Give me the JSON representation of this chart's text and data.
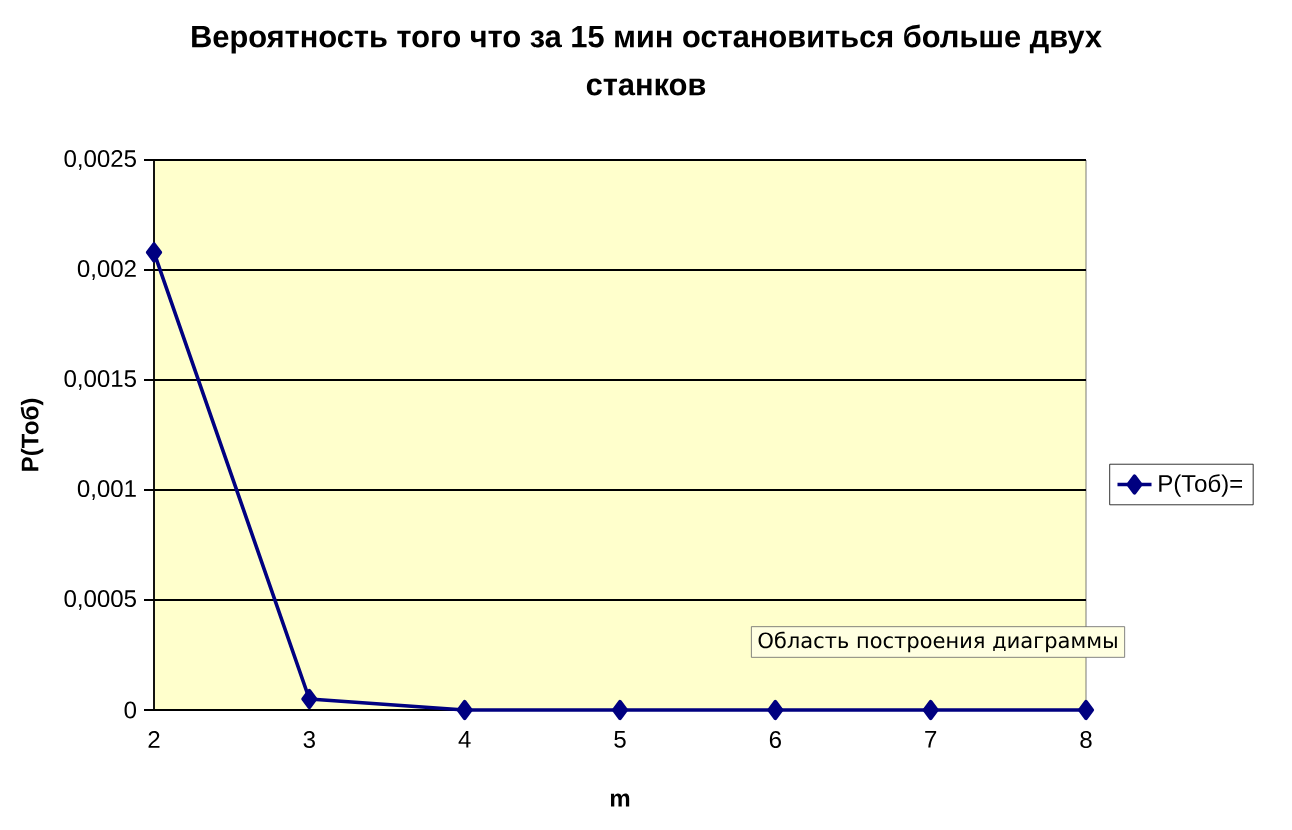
{
  "chart_data": {
    "type": "line",
    "title": "Вероятность того что за 15 мин остановиться больше двух станков",
    "xlabel": "m",
    "ylabel": "P(Тоб)",
    "categories": [
      "2",
      "3",
      "4",
      "5",
      "6",
      "7",
      "8"
    ],
    "series": [
      {
        "name": "P(Тоб)=",
        "color": "#000080",
        "values": [
          0.00208,
          5e-05,
          0,
          0,
          0,
          0,
          0
        ]
      }
    ],
    "ylim": [
      0,
      0.0025
    ],
    "yticks": [
      0,
      {
        "value": 0.0005,
        "label": "0,0005"
      },
      {
        "value": 0.001,
        "label": "0,001"
      },
      {
        "value": 0.0015,
        "label": "0,0015"
      },
      {
        "value": 0.002,
        "label": "0,002"
      },
      {
        "value": 0.0025,
        "label": "0,0025"
      }
    ],
    "grid": "y",
    "legend": "right",
    "marker": "diamond",
    "line_style": "solid",
    "annotations": [
      "Область построения диаграммы"
    ]
  }
}
